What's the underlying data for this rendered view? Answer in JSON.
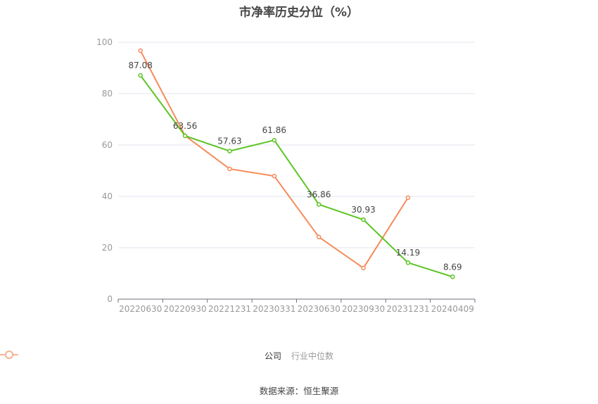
{
  "title": "市净率历史分位（%）",
  "legend": {
    "company_label": "公司",
    "industry_label": "行业中位数"
  },
  "source": "数据来源：恒生聚源",
  "colors": {
    "company": "#5cc524",
    "industry": "#f68b5a",
    "grid": "#e3e6ef",
    "axis": "#6e7079",
    "tick_text": "#999999"
  },
  "chart_data": {
    "type": "line",
    "title": "市净率历史分位（%）",
    "xlabel": "",
    "ylabel": "",
    "ylim": [
      0,
      100
    ],
    "yticks": [
      0,
      20,
      40,
      60,
      80,
      100
    ],
    "grid": true,
    "legend_position": "bottom",
    "categories": [
      "20220630",
      "20220930",
      "20221231",
      "20230331",
      "20230630",
      "20230930",
      "20231231",
      "20240409"
    ],
    "series": [
      {
        "name": "公司",
        "values": [
          87.08,
          63.56,
          57.63,
          61.86,
          36.86,
          30.93,
          14.19,
          8.69
        ],
        "labels_shown": true
      },
      {
        "name": "行业中位数",
        "values": [
          96.7,
          63.6,
          50.7,
          47.9,
          24.2,
          12.1,
          39.5,
          null
        ],
        "labels_shown": false
      }
    ]
  }
}
